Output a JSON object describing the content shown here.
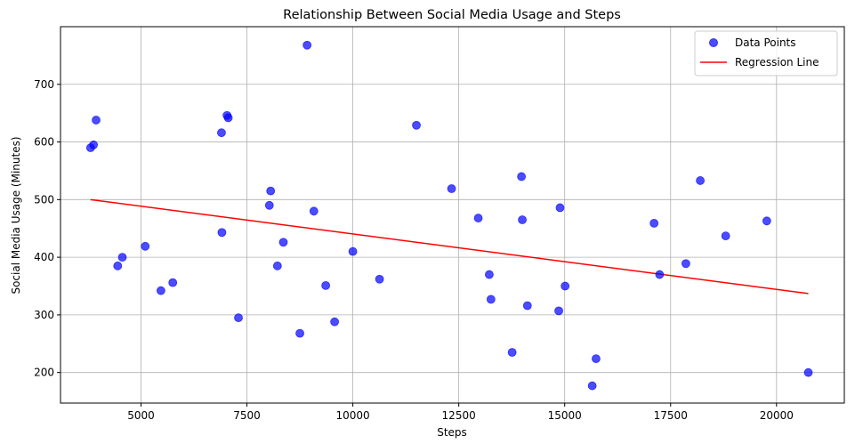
{
  "chart_data": {
    "type": "scatter",
    "title": "Relationship Between Social Media Usage and Steps",
    "xlabel": "Steps",
    "ylabel": "Social Media Usage (Minutes)",
    "xlim": [
      3100,
      21600
    ],
    "ylim": [
      147,
      800
    ],
    "xticks": [
      5000,
      7500,
      10000,
      12500,
      15000,
      17500,
      20000
    ],
    "xtick_labels": [
      "5000",
      "7500",
      "10000",
      "12500",
      "15000",
      "17500",
      "20000"
    ],
    "yticks": [
      200,
      300,
      400,
      500,
      600,
      700
    ],
    "ytick_labels": [
      "200",
      "300",
      "400",
      "500",
      "600",
      "700"
    ],
    "grid": true,
    "legend_position": "top-right",
    "series": [
      {
        "name": "Data Points",
        "kind": "scatter",
        "color": "#0000ff",
        "points": [
          [
            3810,
            590
          ],
          [
            3880,
            595
          ],
          [
            3940,
            638
          ],
          [
            4450,
            385
          ],
          [
            4560,
            400
          ],
          [
            5100,
            419
          ],
          [
            5470,
            342
          ],
          [
            5750,
            356
          ],
          [
            6900,
            616
          ],
          [
            6910,
            443
          ],
          [
            7030,
            646
          ],
          [
            7060,
            642
          ],
          [
            7300,
            295
          ],
          [
            8030,
            490
          ],
          [
            8060,
            515
          ],
          [
            8220,
            385
          ],
          [
            8360,
            426
          ],
          [
            8750,
            268
          ],
          [
            8920,
            768
          ],
          [
            9080,
            480
          ],
          [
            9360,
            351
          ],
          [
            9570,
            288
          ],
          [
            10000,
            410
          ],
          [
            10630,
            362
          ],
          [
            11500,
            629
          ],
          [
            12330,
            519
          ],
          [
            12960,
            468
          ],
          [
            13220,
            370
          ],
          [
            13260,
            327
          ],
          [
            13760,
            235
          ],
          [
            13980,
            540
          ],
          [
            14000,
            465
          ],
          [
            14120,
            316
          ],
          [
            14860,
            307
          ],
          [
            14890,
            486
          ],
          [
            15010,
            350
          ],
          [
            15650,
            177
          ],
          [
            15740,
            224
          ],
          [
            17110,
            459
          ],
          [
            17240,
            370
          ],
          [
            17860,
            389
          ],
          [
            18200,
            533
          ],
          [
            18800,
            437
          ],
          [
            19770,
            463
          ],
          [
            20750,
            200
          ]
        ]
      },
      {
        "name": "Regression Line",
        "kind": "line",
        "color": "#ff0000",
        "x": [
          3810,
          20750
        ],
        "y": [
          500,
          337
        ]
      }
    ]
  }
}
